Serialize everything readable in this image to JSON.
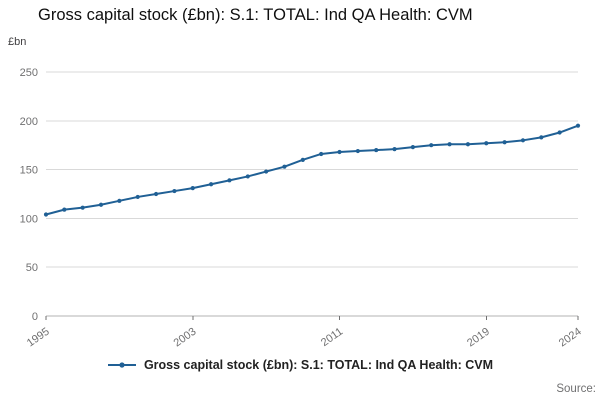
{
  "header": {
    "title": "Gross capital stock (£bn): S.1: TOTAL: Ind QA Health: CVM"
  },
  "footer": {
    "source_label": "Source:"
  },
  "colors": {
    "line": "#206095",
    "grid": "#d9d9d9",
    "axis": "#b3b3b3",
    "tick": "#707071"
  },
  "chart_data": {
    "type": "line",
    "title": "Gross capital stock (£bn): S.1: TOTAL: Ind QA Health: CVM",
    "xlabel": "",
    "ylabel": "£bn",
    "ylim": [
      0,
      250
    ],
    "y_ticks": [
      0,
      50,
      100,
      150,
      200,
      250
    ],
    "x_ticks": [
      1995,
      2003,
      2011,
      2019,
      2024
    ],
    "grid": true,
    "marker": "dot",
    "legend_position": "bottom",
    "x": [
      1995,
      1996,
      1997,
      1998,
      1999,
      2000,
      2001,
      2002,
      2003,
      2004,
      2005,
      2006,
      2007,
      2008,
      2009,
      2010,
      2011,
      2012,
      2013,
      2014,
      2015,
      2016,
      2017,
      2018,
      2019,
      2020,
      2021,
      2022,
      2023,
      2024
    ],
    "series": [
      {
        "name": "Gross capital stock (£bn): S.1: TOTAL: Ind QA Health: CVM",
        "values": [
          104,
          109,
          111,
          114,
          118,
          122,
          125,
          128,
          131,
          135,
          139,
          143,
          148,
          153,
          160,
          166,
          168,
          169,
          170,
          171,
          173,
          175,
          176,
          176,
          177,
          178,
          180,
          183,
          188,
          195
        ]
      }
    ]
  }
}
